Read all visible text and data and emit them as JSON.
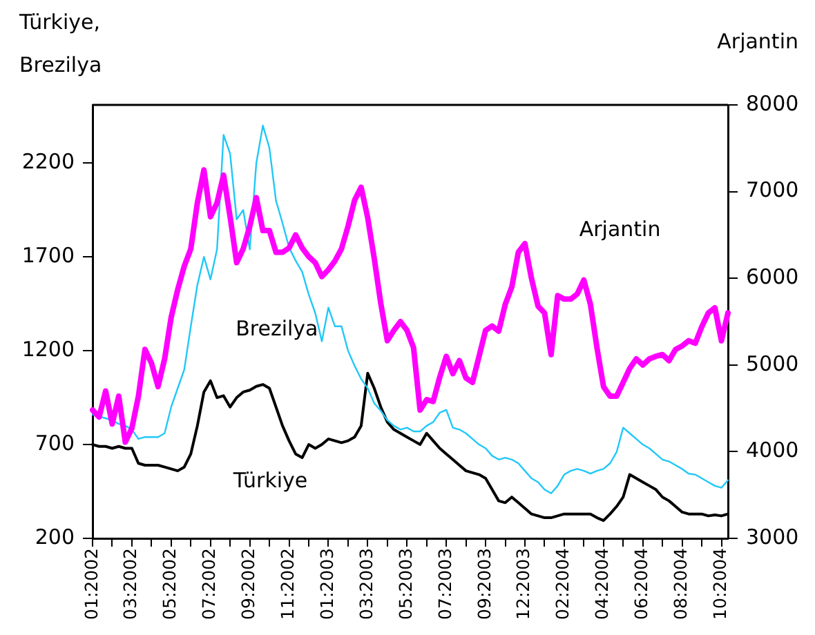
{
  "chart_data": {
    "type": "line",
    "ylabel": "Türkiye, Brezilya",
    "y2label": "Arjantin",
    "categories": [
      "01:2002",
      null,
      null,
      null,
      null,
      null,
      "03:2002",
      null,
      null,
      null,
      null,
      null,
      "05:2002",
      null,
      null,
      null,
      null,
      null,
      "07:2002",
      null,
      null,
      null,
      null,
      null,
      "09:2002",
      null,
      null,
      null,
      null,
      null,
      "11:2002",
      null,
      null,
      null,
      null,
      null,
      "01:2003",
      null,
      null,
      null,
      null,
      null,
      "03:2003",
      null,
      null,
      null,
      null,
      null,
      "05:2003",
      null,
      null,
      null,
      null,
      null,
      "07:2003",
      null,
      null,
      null,
      null,
      null,
      "09:2003",
      null,
      null,
      null,
      null,
      null,
      "12:2003",
      null,
      null,
      null,
      null,
      null,
      "02:2004",
      null,
      null,
      null,
      null,
      null,
      "04:2004",
      null,
      null,
      null,
      null,
      null,
      "06:2004",
      null,
      null,
      null,
      null,
      null,
      "08:2004",
      null,
      null,
      null,
      null,
      null,
      "10:2004",
      null
    ],
    "ylim": [
      200,
      2510
    ],
    "yticks": [
      200,
      700,
      1200,
      1700,
      2200
    ],
    "y2lim": [
      3000,
      8000
    ],
    "y2ticks": [
      3000,
      4000,
      5000,
      6000,
      7000,
      8000
    ],
    "grid": false,
    "legend": false,
    "marker": "none",
    "line_style": "solid",
    "series": [
      {
        "name": "Arjantin",
        "color": "#ff00ff",
        "axis": "y2",
        "values": [
          4480,
          4400,
          4700,
          4320,
          4640,
          4110,
          4270,
          4640,
          5180,
          5020,
          4750,
          5070,
          5550,
          5870,
          6140,
          6340,
          6870,
          7250,
          6710,
          6870,
          7190,
          6710,
          6180,
          6340,
          6600,
          6930,
          6550,
          6550,
          6300,
          6300,
          6350,
          6500,
          6350,
          6250,
          6180,
          6020,
          6100,
          6200,
          6340,
          6600,
          6900,
          7050,
          6700,
          6230,
          5710,
          5280,
          5400,
          5500,
          5400,
          5200,
          4480,
          4600,
          4580,
          4860,
          5100,
          4900,
          5050,
          4850,
          4800,
          5100,
          5400,
          5450,
          5390,
          5700,
          5900,
          6300,
          6400,
          6000,
          5680,
          5600,
          5120,
          5800,
          5760,
          5760,
          5820,
          5980,
          5700,
          5200,
          4750,
          4640,
          4640,
          4800,
          4960,
          5070,
          5000,
          5070,
          5100,
          5120,
          5050,
          5180,
          5220,
          5280,
          5250,
          5440,
          5600,
          5660,
          5280,
          5600
        ]
      },
      {
        "name": "Brezilya",
        "color": "#20c8f8",
        "values": [
          860,
          850,
          840,
          830,
          810,
          800,
          780,
          730,
          740,
          740,
          740,
          760,
          900,
          1000,
          1100,
          1330,
          1550,
          1700,
          1580,
          1740,
          2350,
          2250,
          1900,
          1950,
          1740,
          2200,
          2400,
          2280,
          2000,
          1880,
          1750,
          1680,
          1620,
          1500,
          1400,
          1250,
          1430,
          1330,
          1330,
          1200,
          1120,
          1050,
          1000,
          920,
          880,
          830,
          800,
          780,
          790,
          770,
          770,
          800,
          820,
          870,
          885,
          790,
          780,
          760,
          730,
          700,
          680,
          640,
          620,
          630,
          620,
          600,
          560,
          520,
          500,
          460,
          440,
          480,
          540,
          560,
          570,
          560,
          545,
          560,
          570,
          600,
          660,
          790,
          760,
          730,
          700,
          680,
          650,
          620,
          610,
          590,
          570,
          545,
          540,
          520,
          500,
          480,
          470,
          510
        ]
      },
      {
        "name": "Türkiye",
        "color": "#000000",
        "values": [
          700,
          690,
          690,
          680,
          690,
          680,
          680,
          600,
          590,
          590,
          590,
          580,
          570,
          560,
          580,
          650,
          800,
          980,
          1040,
          950,
          960,
          900,
          950,
          980,
          990,
          1010,
          1020,
          1000,
          900,
          800,
          720,
          650,
          630,
          700,
          680,
          700,
          730,
          720,
          710,
          720,
          740,
          800,
          1080,
          1000,
          900,
          820,
          780,
          760,
          740,
          720,
          700,
          760,
          720,
          680,
          650,
          620,
          590,
          560,
          550,
          540,
          520,
          460,
          400,
          390,
          420,
          390,
          360,
          330,
          320,
          310,
          310,
          320,
          330,
          330,
          330,
          330,
          330,
          310,
          295,
          330,
          370,
          420,
          540,
          520,
          500,
          480,
          460,
          420,
          400,
          370,
          340,
          330,
          330,
          330,
          320,
          325,
          320,
          330
        ]
      }
    ]
  }
}
